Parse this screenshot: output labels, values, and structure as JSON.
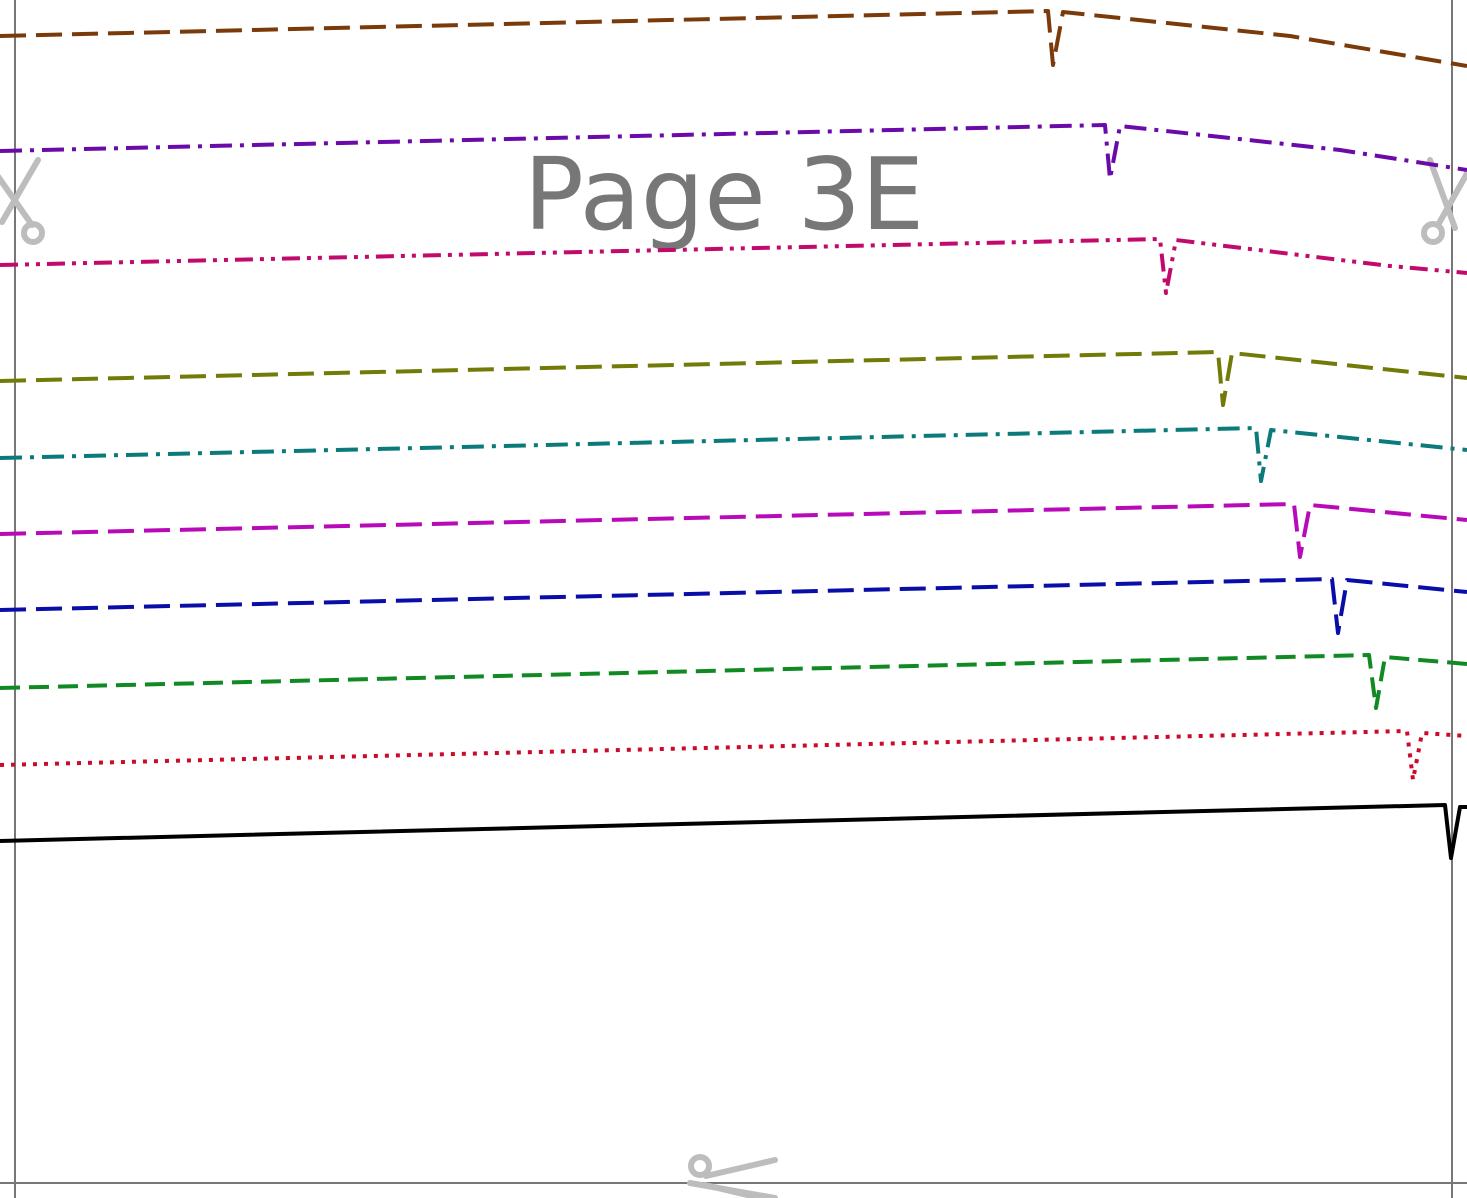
{
  "page": {
    "label": "Page 3E"
  },
  "colors": {
    "background": "#ffffff",
    "border": "#777777",
    "label": "#777777",
    "scissors": "#bdbdbd"
  },
  "icons": {
    "cut_mark": "scissors-icon"
  },
  "size_lines": [
    {
      "color": "#7b3a0a",
      "style": "long-dash"
    },
    {
      "color": "#6a0aa8",
      "style": "dash-dot"
    },
    {
      "color": "#c20a6c",
      "style": "dash-dot-dot"
    },
    {
      "color": "#727a08",
      "style": "long-dash"
    },
    {
      "color": "#0b7a7a",
      "style": "dash-dot"
    },
    {
      "color": "#b80ab8",
      "style": "long-dash"
    },
    {
      "color": "#0a0ea8",
      "style": "long-dash"
    },
    {
      "color": "#128a24",
      "style": "dash"
    },
    {
      "color": "#cc0a2a",
      "style": "dot"
    },
    {
      "color": "#000000",
      "style": "solid"
    }
  ]
}
